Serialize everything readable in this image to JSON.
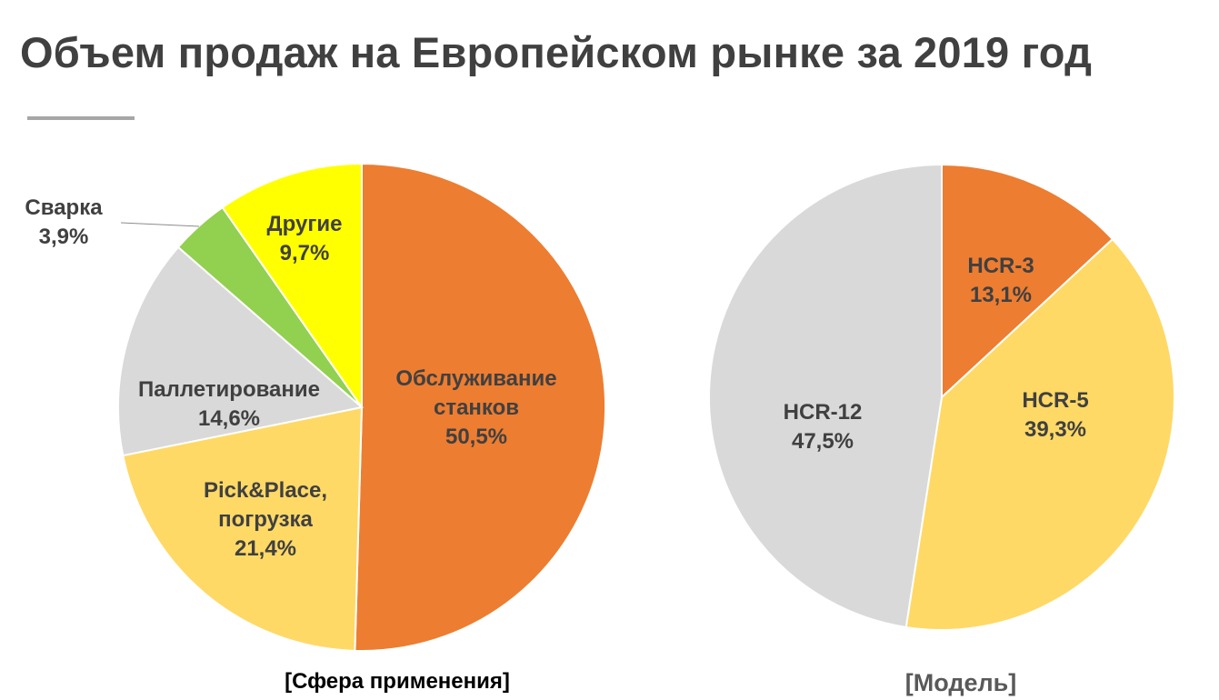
{
  "title": "Объем продаж на Европейском рынке за 2019 год",
  "chart_data": [
    {
      "type": "pie",
      "caption": "[Сфера применения]",
      "slices": [
        {
          "label_lines": [
            "Обслуживание",
            "станков"
          ],
          "value": 50.5,
          "value_label": "50,5%",
          "color": "#ED7D31"
        },
        {
          "label_lines": [
            "Pick&Place,",
            "погрузка"
          ],
          "value": 21.4,
          "value_label": "21,4%",
          "color": "#FFD966"
        },
        {
          "label_lines": [
            "Паллетирование"
          ],
          "value": 14.6,
          "value_label": "14,6%",
          "color": "#D9D9D9"
        },
        {
          "label_lines": [
            "Сварка"
          ],
          "value": 3.9,
          "value_label": "3,9%",
          "color": "#92D050"
        },
        {
          "label_lines": [
            "Другие"
          ],
          "value": 9.7,
          "value_label": "9,7%",
          "color": "#FFFF00"
        }
      ]
    },
    {
      "type": "pie",
      "caption": "[Модель]",
      "slices": [
        {
          "label_lines": [
            "HCR-3"
          ],
          "value": 13.1,
          "value_label": "13,1%",
          "color": "#ED7D31"
        },
        {
          "label_lines": [
            "HCR-5"
          ],
          "value": 39.3,
          "value_label": "39,3%",
          "color": "#FFD966"
        },
        {
          "label_lines": [
            "HCR-12"
          ],
          "value": 47.5,
          "value_label": "47,5%",
          "color": "#D9D9D9"
        }
      ]
    }
  ]
}
